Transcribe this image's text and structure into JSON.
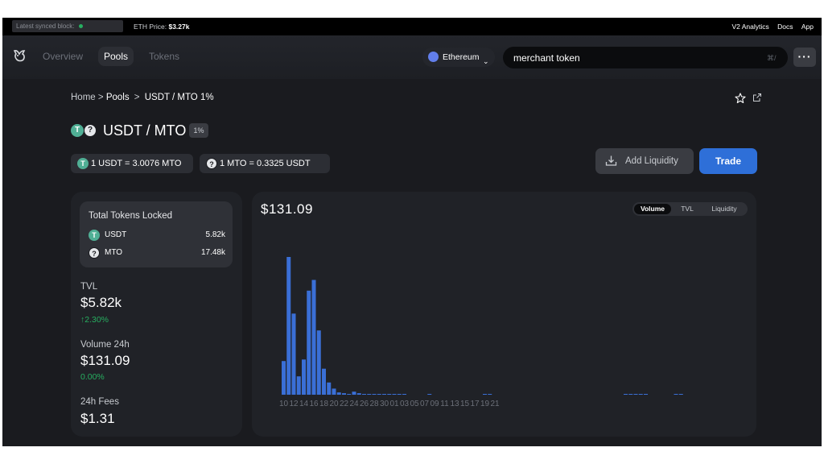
{
  "topbar": {
    "sync_label": "Latest synced block:",
    "eth_price_label": "ETH Price:",
    "eth_price_value": "$3.27k",
    "links": [
      "V2 Analytics",
      "Docs",
      "App"
    ]
  },
  "nav": {
    "tabs": [
      "Overview",
      "Pools",
      "Tokens"
    ],
    "active_tab": "Pools",
    "network": "Ethereum",
    "search_value": "merchant token",
    "search_shortcut": "⌘/"
  },
  "breadcrumb": {
    "home": "Home",
    "pools": "Pools",
    "current": "USDT / MTO 1%",
    "sep": ">"
  },
  "pool": {
    "name": "USDT / MTO",
    "fee_badge": "1%",
    "token0_glyph": "T",
    "token1_glyph": "?",
    "rate0": "1 USDT = 3.0076 MTO",
    "rate1": "1 MTO = 0.3325 USDT"
  },
  "actions": {
    "add_liquidity": "Add Liquidity",
    "trade": "Trade"
  },
  "tokens_locked": {
    "title": "Total Tokens Locked",
    "rows": [
      {
        "symbol": "USDT",
        "amount": "5.82k"
      },
      {
        "symbol": "MTO",
        "amount": "17.48k"
      }
    ]
  },
  "metrics": {
    "tvl_label": "TVL",
    "tvl_value": "$5.82k",
    "tvl_change": "↑2.30%",
    "volume_label": "Volume 24h",
    "volume_value": "$131.09",
    "volume_change": "0.00%",
    "fees_label": "24h Fees",
    "fees_value": "$1.31"
  },
  "chart_toggle": {
    "options": [
      "Volume",
      "TVL",
      "Liquidity"
    ],
    "active": "Volume"
  },
  "colors": {
    "accent": "#2e6fd8",
    "bar": "#3a6fd6",
    "positive": "#27ae60",
    "background": "#1a1b1f"
  },
  "chart_data": {
    "type": "bar",
    "title": "$131.09",
    "xlabel": "",
    "ylabel": "",
    "ylim": [
      0,
      100
    ],
    "grid": false,
    "tick_labels": [
      "10",
      "12",
      "14",
      "16",
      "18",
      "20",
      "22",
      "24",
      "26",
      "28",
      "30",
      "01",
      "03",
      "05",
      "07",
      "09",
      "11",
      "13",
      "15",
      "17",
      "19",
      "21"
    ],
    "values": [
      22,
      90,
      53,
      12,
      23,
      68,
      75,
      42,
      17,
      8,
      4,
      1.5,
      1,
      0.5,
      2,
      1,
      0.3,
      0.3,
      0.3,
      0.2,
      0.2,
      0.5,
      0.3,
      0.2,
      0.2,
      0,
      0,
      0,
      0,
      0.2,
      0,
      0,
      0,
      0,
      0,
      0,
      0,
      0,
      0,
      0,
      0.2,
      0.3,
      0,
      0,
      0,
      0,
      0,
      0,
      0,
      0,
      0,
      0,
      0,
      0,
      0,
      0,
      0,
      0,
      0,
      0,
      0,
      0,
      0,
      0,
      0,
      0,
      0,
      0,
      0.2,
      0.2,
      0.2,
      0.2,
      0.2,
      0,
      0,
      0,
      0,
      0,
      0.1,
      0.1,
      0,
      0,
      0,
      0,
      0,
      0,
      0,
      0,
      0
    ]
  }
}
